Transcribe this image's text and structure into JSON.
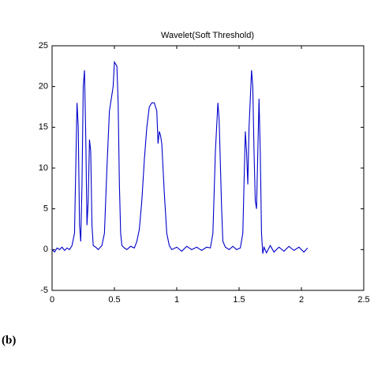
{
  "chart_data": {
    "type": "line",
    "title": "Wavelet(Soft Threshold)",
    "panel_label": "(b)",
    "series": [
      {
        "color": "#0000cc",
        "x": [
          0,
          0.02,
          0.04,
          0.06,
          0.08,
          0.1,
          0.12,
          0.14,
          0.16,
          0.18,
          0.19,
          0.2,
          0.21,
          0.22,
          0.23,
          0.24,
          0.25,
          0.26,
          0.27,
          0.28,
          0.29,
          0.3,
          0.31,
          0.32,
          0.33,
          0.35,
          0.37,
          0.4,
          0.42,
          0.44,
          0.46,
          0.48,
          0.49,
          0.5,
          0.52,
          0.53,
          0.54,
          0.55,
          0.56,
          0.58,
          0.6,
          0.63,
          0.66,
          0.68,
          0.7,
          0.72,
          0.74,
          0.76,
          0.78,
          0.8,
          0.82,
          0.84,
          0.85,
          0.86,
          0.87,
          0.88,
          0.9,
          0.92,
          0.94,
          0.96,
          1.0,
          1.04,
          1.08,
          1.12,
          1.16,
          1.2,
          1.24,
          1.27,
          1.29,
          1.31,
          1.33,
          1.34,
          1.36,
          1.37,
          1.39,
          1.42,
          1.45,
          1.48,
          1.51,
          1.53,
          1.55,
          1.56,
          1.57,
          1.58,
          1.6,
          1.61,
          1.62,
          1.63,
          1.64,
          1.66,
          1.67,
          1.68,
          1.69,
          1.7,
          1.72,
          1.75,
          1.78,
          1.82,
          1.86,
          1.9,
          1.94,
          1.98,
          2.02,
          2.05
        ],
        "values": [
          0,
          -0.3,
          0.2,
          0,
          0.3,
          -0.1,
          0.2,
          0,
          0.5,
          2,
          10,
          18,
          15,
          3,
          1,
          8,
          20,
          22,
          14,
          3,
          6,
          13.5,
          12,
          3,
          0.5,
          0.3,
          0,
          0.5,
          2,
          10,
          17,
          19,
          20,
          23,
          22.5,
          18,
          8,
          2,
          0.5,
          0.2,
          0,
          0.4,
          0.2,
          1,
          2.5,
          6,
          11,
          15,
          17.5,
          18,
          18,
          17,
          13,
          14.5,
          14,
          13,
          7,
          2,
          0.5,
          0,
          0.3,
          -0.2,
          0.4,
          0,
          0.3,
          -0.1,
          0.3,
          0.2,
          2,
          12,
          18,
          16,
          5,
          1,
          0.3,
          0,
          0.4,
          0,
          0.2,
          2,
          14.5,
          12,
          8,
          15,
          22,
          20,
          12,
          6,
          5,
          18.5,
          12,
          2,
          -0.5,
          0.3,
          -0.4,
          0.5,
          -0.3,
          0.3,
          -0.2,
          0.4,
          -0.1,
          0.3,
          -0.3,
          0.2
        ]
      }
    ],
    "xlim": [
      0,
      2.5
    ],
    "xticks": [
      0,
      0.5,
      1,
      1.5,
      2,
      2.5
    ],
    "ylim": [
      -5,
      25
    ],
    "yticks": [
      -5,
      0,
      5,
      10,
      15,
      20,
      25
    ]
  }
}
